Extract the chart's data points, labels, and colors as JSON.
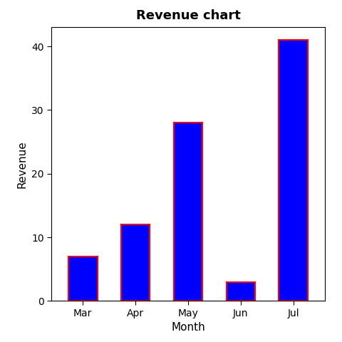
{
  "title": "Revenue chart",
  "xlabel": "Month",
  "ylabel": "Revenue",
  "categories": [
    "Mar",
    "Apr",
    "May",
    "Jun",
    "Jul"
  ],
  "values": [
    7,
    12,
    28,
    3,
    41
  ],
  "bar_color": "#0000FF",
  "bar_edgecolor": "#FF0000",
  "bar_edgewidth": 1.5,
  "ylim": [
    0,
    43
  ],
  "yticks": [
    0,
    10,
    20,
    30,
    40
  ],
  "background_color": "#FFFFFF",
  "title_fontsize": 13,
  "title_fontweight": "bold",
  "label_fontsize": 11,
  "tick_fontsize": 10,
  "bar_width": 0.55
}
